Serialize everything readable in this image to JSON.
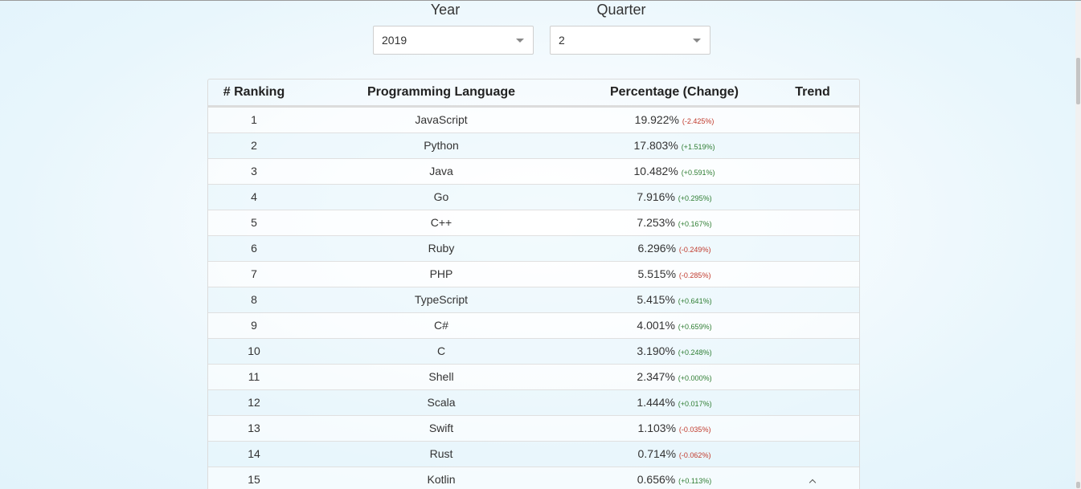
{
  "filters": {
    "year": {
      "label": "Year",
      "value": "2019"
    },
    "quarter": {
      "label": "Quarter",
      "value": "2"
    }
  },
  "table": {
    "headers": {
      "ranking": "# Ranking",
      "language": "Programming Language",
      "percentage": "Percentage (Change)",
      "trend": "Trend"
    },
    "rows": [
      {
        "rank": "1",
        "language": "JavaScript",
        "percentage": "19.922%",
        "change": "(-2.425%)",
        "direction": "down"
      },
      {
        "rank": "2",
        "language": "Python",
        "percentage": "17.803%",
        "change": "(+1.519%)",
        "direction": "up"
      },
      {
        "rank": "3",
        "language": "Java",
        "percentage": "10.482%",
        "change": "(+0.591%)",
        "direction": "up"
      },
      {
        "rank": "4",
        "language": "Go",
        "percentage": "7.916%",
        "change": "(+0.295%)",
        "direction": "up"
      },
      {
        "rank": "5",
        "language": "C++",
        "percentage": "7.253%",
        "change": "(+0.167%)",
        "direction": "up"
      },
      {
        "rank": "6",
        "language": "Ruby",
        "percentage": "6.296%",
        "change": "(-0.249%)",
        "direction": "down"
      },
      {
        "rank": "7",
        "language": "PHP",
        "percentage": "5.515%",
        "change": "(-0.285%)",
        "direction": "down"
      },
      {
        "rank": "8",
        "language": "TypeScript",
        "percentage": "5.415%",
        "change": "(+0.641%)",
        "direction": "up"
      },
      {
        "rank": "9",
        "language": "C#",
        "percentage": "4.001%",
        "change": "(+0.659%)",
        "direction": "up"
      },
      {
        "rank": "10",
        "language": "C",
        "percentage": "3.190%",
        "change": "(+0.248%)",
        "direction": "up"
      },
      {
        "rank": "11",
        "language": "Shell",
        "percentage": "2.347%",
        "change": "(+0.000%)",
        "direction": "up"
      },
      {
        "rank": "12",
        "language": "Scala",
        "percentage": "1.444%",
        "change": "(+0.017%)",
        "direction": "up"
      },
      {
        "rank": "13",
        "language": "Swift",
        "percentage": "1.103%",
        "change": "(-0.035%)",
        "direction": "down"
      },
      {
        "rank": "14",
        "language": "Rust",
        "percentage": "0.714%",
        "change": "(-0.062%)",
        "direction": "down"
      },
      {
        "rank": "15",
        "language": "Kotlin",
        "percentage": "0.656%",
        "change": "(+0.113%)",
        "direction": "up",
        "trend_icon": "chevron-up-icon"
      }
    ]
  },
  "colors": {
    "negative": "#c0392b",
    "positive": "#2e7d32"
  }
}
